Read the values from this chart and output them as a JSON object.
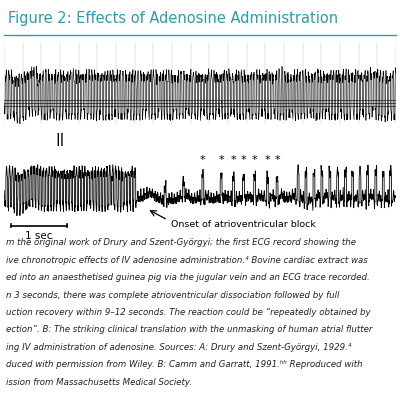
{
  "title": "Figure 2: Effects of Adenosine Administration",
  "title_color": "#2e9bae",
  "title_fontsize": 10.5,
  "background_color": "#ffffff",
  "scale_bar_text": "1 sec",
  "onset_label": "Onset of atrioventricular block",
  "caption_lines": [
    "m the original work of Drury and Szent-Györgyi; the first ECG record showing the",
    "ive chronotropic effects of IV adenosine administration.⁴ Bovine cardiac extract was",
    "ed into an anaesthetised guinea pig via the jugular vein and an ECG trace recorded.",
    "n 3 seconds, there was complete atrioventricular dissociation followed by full",
    "uction recovery within 9–12 seconds. The reaction could be “repeatedly obtained by",
    "ection”. B: The striking clinical translation with the unmasking of human atrial flutter",
    "ing IV administration of adenosine. Sources: A: Drury and Szent-Györgyi, 1929.⁴",
    "duced with permission from Wiley. B: Camm and Garratt, 1991.ʰʰ Reproduced with",
    "ission from Massachusetts Medical Society."
  ],
  "caption_fontsize": 6.2,
  "caption_color": "#222222"
}
